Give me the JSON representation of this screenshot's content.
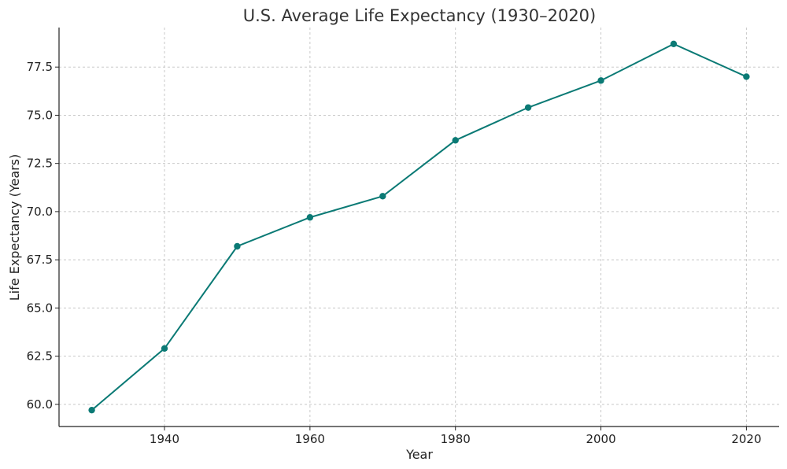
{
  "chart_data": {
    "type": "line",
    "title": "U.S. Average Life Expectancy (1930–2020)",
    "xlabel": "Year",
    "ylabel": "Life Expectancy (Years)",
    "x": [
      1930,
      1940,
      1950,
      1960,
      1970,
      1980,
      1990,
      2000,
      2010,
      2020
    ],
    "series": [
      {
        "name": "Life Expectancy",
        "values": [
          59.7,
          62.9,
          68.2,
          69.7,
          70.8,
          73.7,
          75.4,
          76.8,
          78.7,
          77.0
        ],
        "color": "#0b7a75"
      }
    ],
    "xlim": [
      1925.5,
      2024.5
    ],
    "ylim": [
      58.85,
      79.55
    ],
    "xticks": [
      1940,
      1960,
      1980,
      2000,
      2020
    ],
    "yticks": [
      60.0,
      62.5,
      65.0,
      67.5,
      70.0,
      72.5,
      75.0,
      77.5
    ],
    "xtick_labels": [
      "1940",
      "1960",
      "1980",
      "2000",
      "2020"
    ],
    "ytick_labels": [
      "60.0",
      "62.5",
      "65.0",
      "67.5",
      "70.0",
      "72.5",
      "75.0",
      "77.5"
    ],
    "grid": true,
    "legend": "none",
    "marker": "circle"
  }
}
